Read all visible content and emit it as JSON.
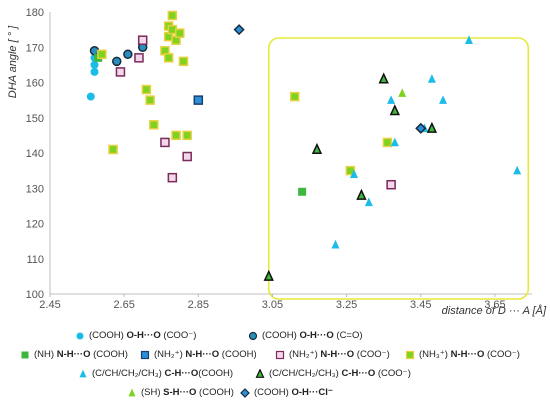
{
  "chart_data": {
    "type": "scatter",
    "title": "",
    "ylabel": "DHA angle [ ° ]",
    "xlabel": "distance of D ··· A [Å]",
    "xlim": [
      2.45,
      3.75
    ],
    "ylim": [
      100,
      180
    ],
    "x_ticks": [
      "2.45",
      "2.65",
      "2.85",
      "3.05",
      "3.25",
      "3.45",
      "3.65"
    ],
    "y_ticks": [
      "100",
      "110",
      "120",
      "130",
      "140",
      "150",
      "160",
      "170",
      "180"
    ],
    "grid": false,
    "highlight_box": {
      "x": [
        3.04,
        3.74
      ],
      "y": [
        100,
        180
      ],
      "color": "#e8e83a"
    },
    "series": [
      {
        "name": "(COOH) O-H···O (COO⁻)",
        "marker": "circle",
        "fill": "#1bbde8",
        "stroke": "none",
        "points": [
          [
            2.56,
            156
          ],
          [
            2.57,
            163
          ],
          [
            2.57,
            165
          ],
          [
            2.57,
            167
          ]
        ]
      },
      {
        "name": "(COOH) O-H···O (C=O)",
        "marker": "circle",
        "fill": "#2a8fbf",
        "stroke": "#1a2b3c",
        "points": [
          [
            2.57,
            169
          ],
          [
            2.63,
            166
          ],
          [
            2.66,
            168
          ],
          [
            2.7,
            170
          ]
        ]
      },
      {
        "name": "(NH) N-H···O (COOH)",
        "marker": "square",
        "fill": "#3db83d",
        "stroke": "none",
        "points": [
          [
            2.58,
            167
          ],
          [
            3.13,
            129
          ]
        ]
      },
      {
        "name": "(NH₂⁺) N-H···O (COOH)",
        "marker": "square",
        "fill": "#2a8fd8",
        "stroke": "#1a3f6f",
        "points": [
          [
            2.85,
            155
          ]
        ]
      },
      {
        "name": "(NH₂⁺) N-H···O (COO⁻)",
        "marker": "square",
        "fill": "#f2d8ea",
        "stroke": "#7a2b5a",
        "points": [
          [
            2.64,
            163
          ],
          [
            2.69,
            167
          ],
          [
            2.7,
            172
          ],
          [
            2.76,
            143
          ],
          [
            2.78,
            133
          ],
          [
            2.82,
            139
          ],
          [
            3.37,
            131
          ]
        ]
      },
      {
        "name": "(NH₃⁺) N-H···O (COO⁻)",
        "marker": "square",
        "fill": "#7ed321",
        "stroke": "#e8d040",
        "points": [
          [
            2.59,
            168
          ],
          [
            2.62,
            141
          ],
          [
            2.71,
            158
          ],
          [
            2.72,
            155
          ],
          [
            2.73,
            148
          ],
          [
            2.76,
            169
          ],
          [
            2.77,
            173
          ],
          [
            2.77,
            176
          ],
          [
            2.77,
            167
          ],
          [
            2.78,
            179
          ],
          [
            2.78,
            175
          ],
          [
            2.79,
            172
          ],
          [
            2.79,
            145
          ],
          [
            2.8,
            174
          ],
          [
            2.81,
            166
          ],
          [
            2.82,
            145
          ],
          [
            3.11,
            156
          ],
          [
            3.26,
            135
          ],
          [
            3.36,
            143
          ]
        ]
      },
      {
        "name": "(C/CH/CH₂/CH₃) C-H···O(COOH)",
        "marker": "triangle",
        "fill": "#1bbde8",
        "stroke": "none",
        "points": [
          [
            3.22,
            114
          ],
          [
            3.27,
            134
          ],
          [
            3.31,
            126
          ],
          [
            3.37,
            155
          ],
          [
            3.38,
            143
          ],
          [
            3.46,
            147
          ],
          [
            3.48,
            161
          ],
          [
            3.51,
            155
          ],
          [
            3.58,
            172
          ],
          [
            3.71,
            135
          ]
        ]
      },
      {
        "name": "(C/CH/CH₂/CH₃) C-H···O (COO⁻)",
        "marker": "triangle",
        "fill": "#3db83d",
        "stroke": "#111111",
        "points": [
          [
            3.04,
            105
          ],
          [
            3.17,
            141
          ],
          [
            3.29,
            128
          ],
          [
            3.35,
            161
          ],
          [
            3.38,
            152
          ],
          [
            3.48,
            147
          ]
        ]
      },
      {
        "name": "(SH) S-H···O (COOH)",
        "marker": "triangle",
        "fill": "#7ed321",
        "stroke": "none",
        "points": [
          [
            3.4,
            157
          ]
        ]
      },
      {
        "name": "(COOH) O-H···Cl⁻",
        "marker": "diamond",
        "fill": "#2a8fd8",
        "stroke": "#1a2b3c",
        "points": [
          [
            2.96,
            175
          ],
          [
            3.45,
            147
          ]
        ]
      }
    ]
  },
  "legend": {
    "rows": [
      [
        {
          "series": 0,
          "parts": [
            "(COOH) ",
            "O-H···O",
            " (COO⁻)"
          ]
        },
        {
          "series": 1,
          "parts": [
            "(COOH) ",
            "O-H···O",
            " (C=O)"
          ]
        }
      ],
      [
        {
          "series": 2,
          "parts": [
            "(NH) ",
            "N-H···O",
            " (COOH)"
          ]
        },
        {
          "series": 3,
          "parts": [
            "(NH₂⁺) ",
            "N-H···O",
            " (COOH)"
          ]
        },
        {
          "series": 4,
          "parts": [
            "(NH₂⁺) ",
            "N-H···O",
            " (COO⁻)"
          ]
        },
        {
          "series": 5,
          "parts": [
            "(NH₃⁺) ",
            "N-H···O",
            " (COO⁻)"
          ]
        }
      ],
      [
        {
          "series": 6,
          "parts": [
            "(C/CH/CH₂/CH₃) ",
            "C-H···O",
            "(COOH)"
          ]
        },
        {
          "series": 7,
          "parts": [
            "(C/CH/CH₂/CH₃) ",
            "C-H···O",
            " (COO⁻)"
          ]
        }
      ],
      [
        {
          "series": 8,
          "parts": [
            "(SH) ",
            "S-H···O",
            " (COOH)"
          ]
        },
        {
          "series": 9,
          "parts": [
            "(COOH) ",
            "O-H···Cl⁻",
            ""
          ]
        }
      ]
    ]
  }
}
